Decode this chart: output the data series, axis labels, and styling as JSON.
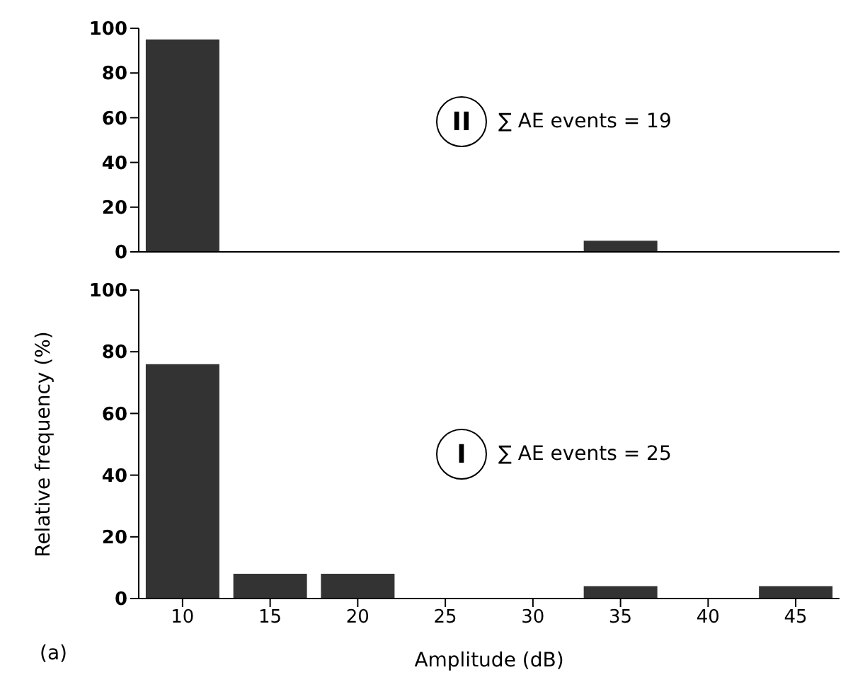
{
  "chart_data": [
    {
      "type": "bar",
      "categories": [
        "10",
        "15",
        "20",
        "25",
        "30",
        "35",
        "40",
        "45"
      ],
      "values": [
        95,
        0,
        0,
        0,
        0,
        5,
        0,
        0
      ],
      "color": "#333333",
      "ylim": [
        0,
        100
      ],
      "yticks": [
        0,
        20,
        40,
        60,
        80,
        100
      ],
      "tick_labels": "y",
      "grid": false,
      "legend": false,
      "annotations": [
        "II",
        "∑ AE events = 19"
      ]
    },
    {
      "type": "bar",
      "categories": [
        "10",
        "15",
        "20",
        "25",
        "30",
        "35",
        "40",
        "45"
      ],
      "values": [
        76,
        8,
        8,
        0,
        0,
        4,
        0,
        4
      ],
      "color": "#333333",
      "ylim": [
        0,
        100
      ],
      "yticks": [
        0,
        20,
        40,
        60,
        80,
        100
      ],
      "xlabel": "Amplitude (dB)",
      "ylabel": "Relative frequency (%)",
      "grid": false,
      "legend": false,
      "annotations": [
        "I",
        "∑ AE events = 25",
        "(a)"
      ]
    }
  ]
}
